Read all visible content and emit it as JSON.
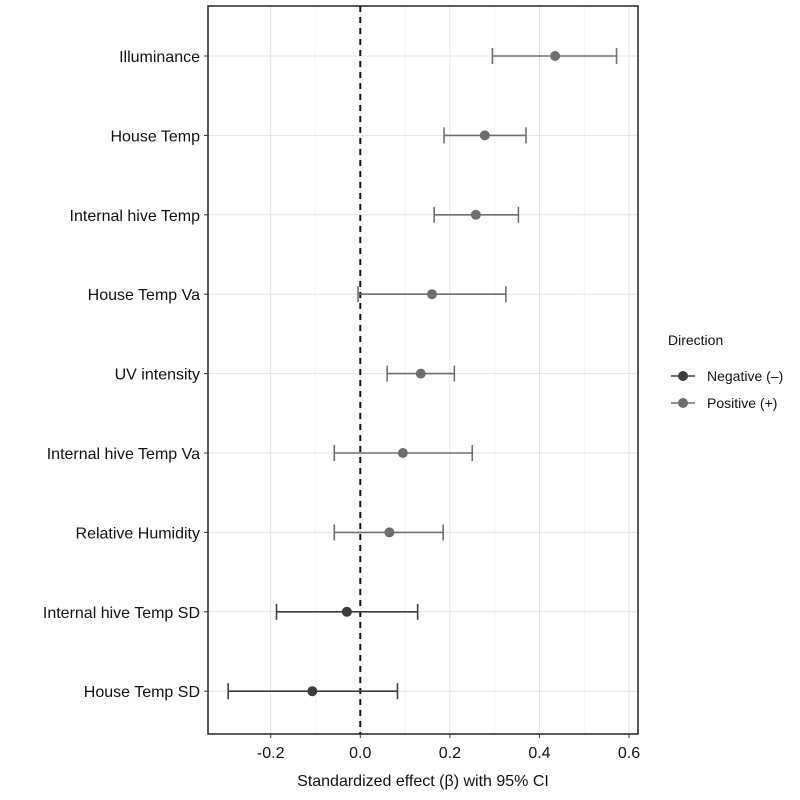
{
  "chart_data": {
    "type": "scatter",
    "subtype": "forest-plot",
    "xlabel": "Standardized effect (β) with 95% CI",
    "ylabel": "",
    "xlim": [
      -0.34,
      0.62
    ],
    "xticks": [
      -0.2,
      0.0,
      0.2,
      0.4,
      0.6
    ],
    "xtick_labels": [
      "-0.2",
      "0.0",
      "0.2",
      "0.4",
      "0.6"
    ],
    "reference_line": 0,
    "grid": true,
    "legend": {
      "title": "Direction",
      "placement": "right",
      "entries": [
        {
          "label": "Negative (–)",
          "color": "#3d3d3d"
        },
        {
          "label": "Positive (+)",
          "color": "#6e6e6e"
        }
      ]
    },
    "rows": [
      {
        "label": "Illuminance",
        "estimate": 0.435,
        "lower": 0.295,
        "upper": 0.572,
        "direction": "Positive (+)"
      },
      {
        "label": "House Temp",
        "estimate": 0.278,
        "lower": 0.187,
        "upper": 0.37,
        "direction": "Positive (+)"
      },
      {
        "label": "Internal hive Temp",
        "estimate": 0.258,
        "lower": 0.165,
        "upper": 0.353,
        "direction": "Positive (+)"
      },
      {
        "label": "House Temp Va",
        "estimate": 0.16,
        "lower": -0.005,
        "upper": 0.325,
        "direction": "Positive (+)"
      },
      {
        "label": "UV intensity",
        "estimate": 0.135,
        "lower": 0.06,
        "upper": 0.21,
        "direction": "Positive (+)"
      },
      {
        "label": "Internal hive Temp Va",
        "estimate": 0.095,
        "lower": -0.058,
        "upper": 0.25,
        "direction": "Positive (+)"
      },
      {
        "label": "Relative Humidity",
        "estimate": 0.065,
        "lower": -0.058,
        "upper": 0.185,
        "direction": "Positive (+)"
      },
      {
        "label": "Internal hive Temp SD",
        "estimate": -0.03,
        "lower": -0.187,
        "upper": 0.128,
        "direction": "Negative (–)"
      },
      {
        "label": "House Temp SD",
        "estimate": -0.107,
        "lower": -0.295,
        "upper": 0.083,
        "direction": "Negative (–)"
      }
    ]
  }
}
